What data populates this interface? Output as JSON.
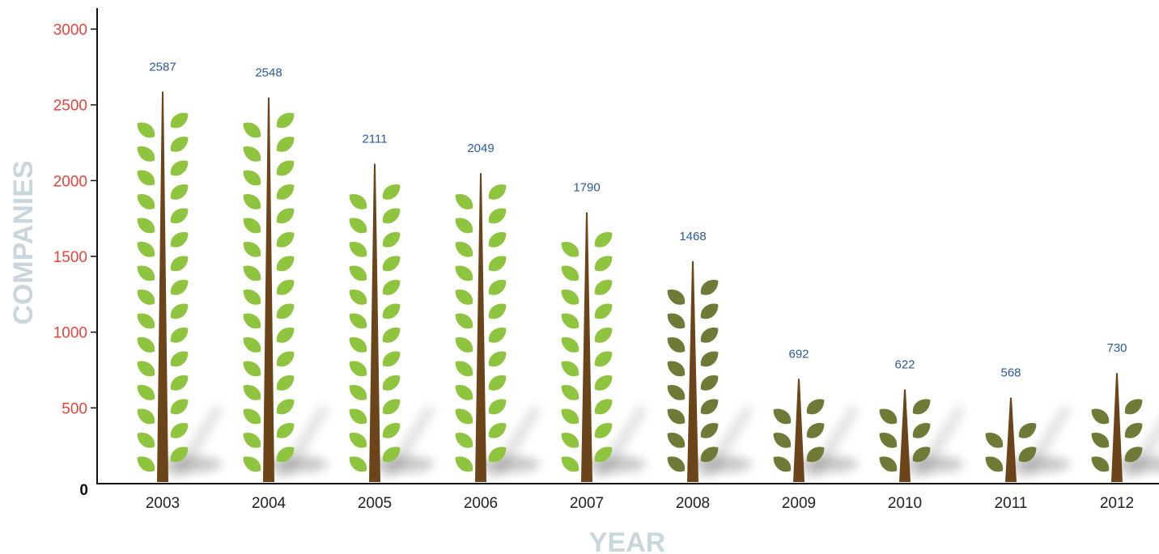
{
  "chart_data": {
    "type": "bar",
    "style": "pictorial plant stems with leaves",
    "categories": [
      "2003",
      "2004",
      "2005",
      "2006",
      "2007",
      "2008",
      "2009",
      "2010",
      "2011",
      "2012"
    ],
    "values": [
      2587,
      2548,
      2111,
      2049,
      1790,
      1468,
      692,
      622,
      568,
      730
    ],
    "xlabel": "YEAR",
    "ylabel": "COMPANIES",
    "ylim": [
      0,
      3000
    ],
    "yticks": [
      0,
      500,
      1000,
      1500,
      2000,
      2500,
      3000
    ],
    "grid": false,
    "legend": "none"
  },
  "colors": {
    "ytick": "#e8443a",
    "zero_tick": "#111111",
    "value_label": "#2a5aa0",
    "axis_title": "#c9d6dc",
    "stem": "#6b4419",
    "leaf_light": "#8fc43f",
    "leaf_dark": "#6e7a36",
    "axis": "#111111"
  }
}
